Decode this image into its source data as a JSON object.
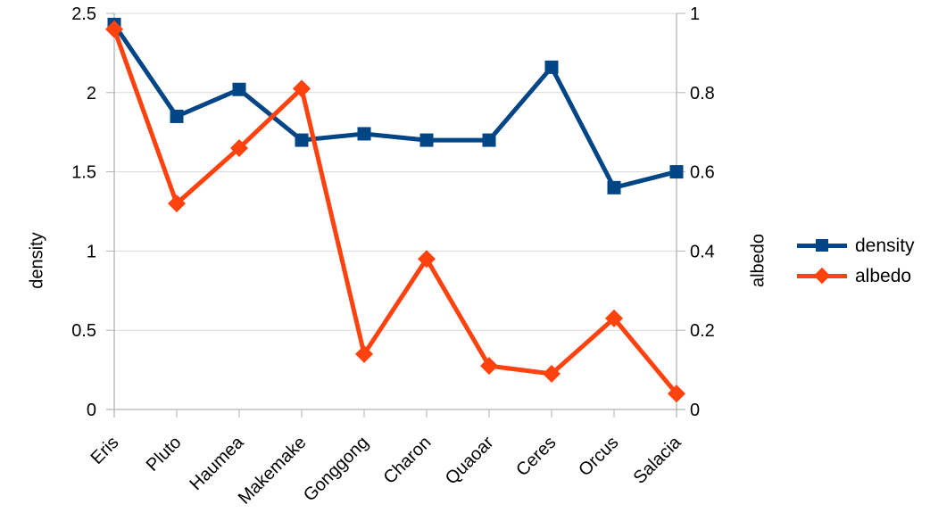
{
  "chart_data": {
    "type": "line",
    "categories": [
      "Eris",
      "Pluto",
      "Haumea",
      "Makemake",
      "Gonggong",
      "Charon",
      "Quaoar",
      "Ceres",
      "Orcus",
      "Salacia"
    ],
    "series": [
      {
        "name": "density",
        "axis": "left",
        "marker": "square",
        "color": "#004586",
        "values": [
          2.43,
          1.85,
          2.02,
          1.7,
          1.74,
          1.7,
          1.7,
          2.16,
          1.4,
          1.5
        ]
      },
      {
        "name": "albedo",
        "axis": "right",
        "marker": "diamond",
        "color": "#ff420e",
        "values": [
          0.96,
          0.52,
          0.66,
          0.81,
          0.14,
          0.38,
          0.11,
          0.09,
          0.23,
          0.04
        ]
      }
    ],
    "left_axis": {
      "title": "density",
      "min": 0,
      "max": 2.5,
      "ticks": [
        "0",
        "0.5",
        "1",
        "1.5",
        "2",
        "2.5"
      ]
    },
    "right_axis": {
      "title": "albedo",
      "min": 0,
      "max": 1,
      "ticks": [
        "0",
        "0.2",
        "0.4",
        "0.6",
        "0.8",
        "1"
      ]
    },
    "legend": {
      "position": "right",
      "entries": [
        "density",
        "albedo"
      ]
    },
    "grid": true,
    "colors": {
      "gridline": "#d9d9d9",
      "axis": "#b3b3b3",
      "text": "#000000",
      "background": "#ffffff"
    }
  }
}
